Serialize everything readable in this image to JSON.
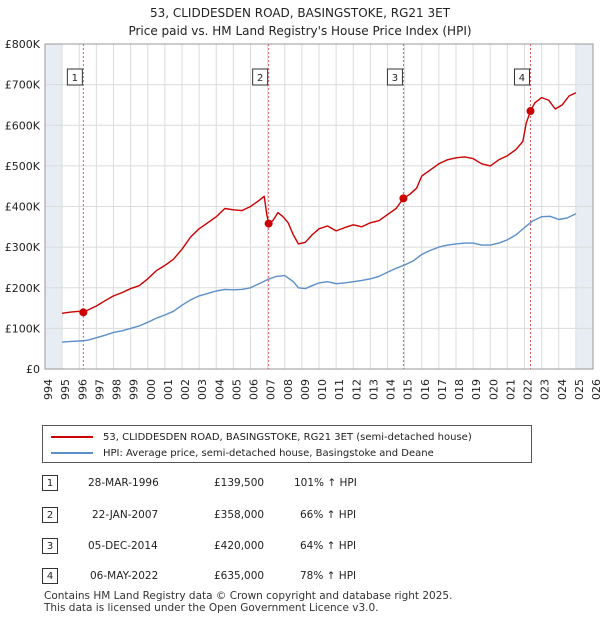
{
  "title": "53, CLIDDESDEN ROAD, BASINGSTOKE, RG21 3ET",
  "subtitle": "Price paid vs. HM Land Registry's House Price Index (HPI)",
  "colors": {
    "property": "#cc0000",
    "hpi": "#5b8fc9",
    "grid": "#dcdcdc",
    "shade": "#e8edf4",
    "marker": "#cc0000"
  },
  "legend": {
    "property_label": "53, CLIDDESDEN ROAD, BASINGSTOKE, RG21 3ET (semi-detached house)",
    "hpi_label": "HPI: Average price, semi-detached house, Basingstoke and Deane"
  },
  "sales": [
    {
      "num": "1",
      "date": "28-MAR-1996",
      "price": "£139,500",
      "hpi": "101% ↑ HPI"
    },
    {
      "num": "2",
      "date": "22-JAN-2007",
      "price": "£358,000",
      "hpi": "66% ↑ HPI"
    },
    {
      "num": "3",
      "date": "05-DEC-2014",
      "price": "£420,000",
      "hpi": "64% ↑ HPI"
    },
    {
      "num": "4",
      "date": "06-MAY-2022",
      "price": "£635,000",
      "hpi": "78% ↑ HPI"
    }
  ],
  "footer": {
    "line1": "Contains HM Land Registry data © Crown copyright and database right 2025.",
    "line2": "This data is licensed under the Open Government Licence v3.0."
  },
  "chart_data": {
    "type": "line",
    "title": "53, CLIDDESDEN ROAD, BASINGSTOKE, RG21 3ET",
    "subtitle": "Price paid vs. HM Land Registry's House Price Index (HPI)",
    "xlabel": "",
    "ylabel": "",
    "xlim": [
      1994,
      2026
    ],
    "ylim": [
      0,
      800000
    ],
    "y_ticks": [
      {
        "value": 0,
        "label": "£0"
      },
      {
        "value": 100000,
        "label": "£100K"
      },
      {
        "value": 200000,
        "label": "£200K"
      },
      {
        "value": 300000,
        "label": "£300K"
      },
      {
        "value": 400000,
        "label": "£400K"
      },
      {
        "value": 500000,
        "label": "£500K"
      },
      {
        "value": 600000,
        "label": "£600K"
      },
      {
        "value": 700000,
        "label": "£700K"
      },
      {
        "value": 800000,
        "label": "£800K"
      }
    ],
    "x_ticks": [
      "1994",
      "1995",
      "1996",
      "1997",
      "1998",
      "1999",
      "2000",
      "2001",
      "2002",
      "2003",
      "2004",
      "2005",
      "2006",
      "2007",
      "2008",
      "2009",
      "2010",
      "2011",
      "2012",
      "2013",
      "2014",
      "2015",
      "2016",
      "2017",
      "2018",
      "2019",
      "2020",
      "2021",
      "2022",
      "2023",
      "2024",
      "2025",
      "2026"
    ],
    "grid": true,
    "shaded_ranges": [
      [
        1994,
        1995
      ],
      [
        2025.0,
        2026
      ]
    ],
    "series": [
      {
        "name": "53, CLIDDESDEN ROAD, BASINGSTOKE, RG21 3ET (semi-detached house)",
        "color": "#cc0000",
        "x": [
          1995.0,
          1995.5,
          1996.0,
          1996.24,
          1996.5,
          1997.0,
          1997.5,
          1998.0,
          1998.5,
          1999.0,
          1999.5,
          2000.0,
          2000.5,
          2001.0,
          2001.5,
          2002.0,
          2002.5,
          2003.0,
          2003.5,
          2004.0,
          2004.5,
          2005.0,
          2005.5,
          2006.0,
          2006.5,
          2006.8,
          2006.95,
          2007.06,
          2007.3,
          2007.6,
          2007.9,
          2008.2,
          2008.5,
          2008.8,
          2009.2,
          2009.6,
          2010.0,
          2010.5,
          2011.0,
          2011.5,
          2012.0,
          2012.5,
          2013.0,
          2013.5,
          2014.0,
          2014.5,
          2014.93,
          2015.3,
          2015.7,
          2016.0,
          2016.5,
          2017.0,
          2017.5,
          2018.0,
          2018.5,
          2019.0,
          2019.5,
          2020.0,
          2020.5,
          2021.0,
          2021.5,
          2021.9,
          2022.1,
          2022.35,
          2022.6,
          2023.0,
          2023.4,
          2023.8,
          2024.2,
          2024.6,
          2025.0
        ],
        "values": [
          137000,
          140000,
          142000,
          139500,
          145000,
          155000,
          168000,
          180000,
          188000,
          198000,
          205000,
          222000,
          242000,
          255000,
          270000,
          295000,
          325000,
          345000,
          360000,
          375000,
          395000,
          392000,
          390000,
          400000,
          415000,
          425000,
          380000,
          358000,
          365000,
          385000,
          375000,
          360000,
          330000,
          308000,
          312000,
          330000,
          345000,
          352000,
          340000,
          348000,
          355000,
          350000,
          360000,
          365000,
          380000,
          395000,
          420000,
          430000,
          445000,
          475000,
          490000,
          505000,
          515000,
          520000,
          522000,
          518000,
          505000,
          500000,
          515000,
          525000,
          540000,
          560000,
          605000,
          635000,
          655000,
          668000,
          662000,
          640000,
          650000,
          672000,
          680000
        ]
      },
      {
        "name": "HPI: Average price, semi-detached house, Basingstoke and Deane",
        "color": "#5b8fc9",
        "x": [
          1995.0,
          1995.5,
          1996.0,
          1996.5,
          1997.0,
          1997.5,
          1998.0,
          1998.5,
          1999.0,
          1999.5,
          2000.0,
          2000.5,
          2001.0,
          2001.5,
          2002.0,
          2002.5,
          2003.0,
          2003.5,
          2004.0,
          2004.5,
          2005.0,
          2005.5,
          2006.0,
          2006.5,
          2007.0,
          2007.5,
          2008.0,
          2008.5,
          2008.8,
          2009.2,
          2009.6,
          2010.0,
          2010.5,
          2011.0,
          2011.5,
          2012.0,
          2012.5,
          2013.0,
          2013.5,
          2014.0,
          2014.5,
          2015.0,
          2015.5,
          2016.0,
          2016.5,
          2017.0,
          2017.5,
          2018.0,
          2018.5,
          2019.0,
          2019.5,
          2020.0,
          2020.5,
          2021.0,
          2021.5,
          2022.0,
          2022.5,
          2023.0,
          2023.5,
          2024.0,
          2024.5,
          2025.0
        ],
        "values": [
          66000,
          68000,
          69000,
          71000,
          77000,
          83000,
          90000,
          94000,
          100000,
          106000,
          115000,
          125000,
          133000,
          142000,
          157000,
          170000,
          180000,
          186000,
          192000,
          196000,
          195000,
          196000,
          200000,
          210000,
          220000,
          228000,
          230000,
          215000,
          200000,
          198000,
          205000,
          212000,
          215000,
          210000,
          212000,
          215000,
          218000,
          222000,
          228000,
          238000,
          248000,
          256000,
          266000,
          282000,
          292000,
          300000,
          305000,
          308000,
          310000,
          310000,
          305000,
          305000,
          310000,
          318000,
          330000,
          348000,
          365000,
          375000,
          376000,
          368000,
          372000,
          382000
        ]
      }
    ],
    "markers": [
      {
        "label": "1",
        "x": 1996.24,
        "y": 139500
      },
      {
        "label": "2",
        "x": 2007.06,
        "y": 358000
      },
      {
        "label": "3",
        "x": 2014.93,
        "y": 420000
      },
      {
        "label": "4",
        "x": 2022.35,
        "y": 635000
      }
    ]
  }
}
